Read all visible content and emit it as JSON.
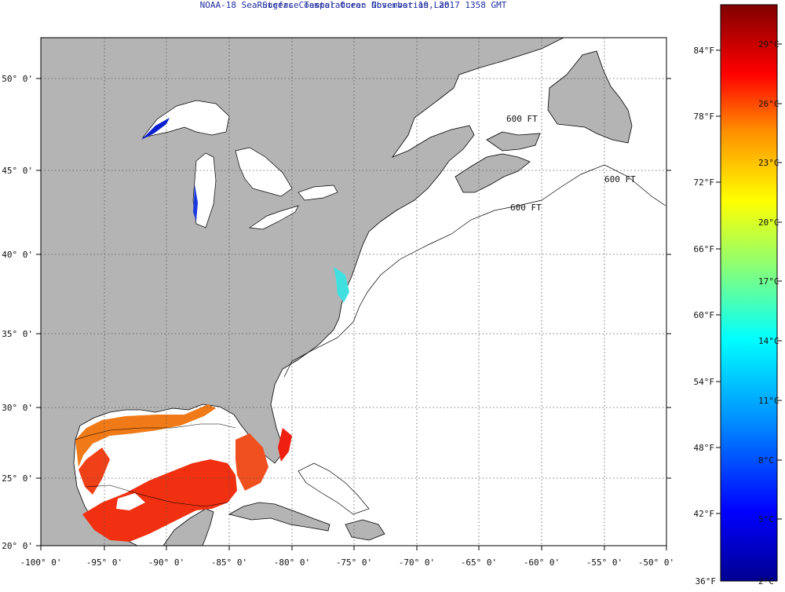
{
  "header": {
    "title": "NOAA-18 Sea Surface Temperature:  November 19, 2017 1358 GMT",
    "subtitle": "Rutgers Coastal Ocean Observation Lab"
  },
  "map": {
    "lon_ticks": [
      "-100° 0'",
      "-95° 0'",
      "-90° 0'",
      "-85° 0'",
      "-80° 0'",
      "-75° 0'",
      "-70° 0'",
      "-65° 0'",
      "-60° 0'",
      "-55° 0'",
      "-50° 0'"
    ],
    "lat_ticks": [
      "50° 0'",
      "45° 0'",
      "40° 0'",
      "35° 0'",
      "30° 0'",
      "25° 0'",
      "20° 0'"
    ],
    "isobath_label": "600 FT",
    "colors": {
      "land": "#b4b4b4",
      "ocean_no_data": "#ffffff",
      "grid": "#555555"
    }
  },
  "colorbar": {
    "fahrenheit": [
      "84°F",
      "78°F",
      "72°F",
      "66°F",
      "60°F",
      "54°F",
      "48°F",
      "42°F",
      "36°F"
    ],
    "celsius": [
      "29°C",
      "26°C",
      "23°C",
      "20°C",
      "17°C",
      "14°C",
      "11°C",
      "8°C",
      "5°C",
      "2°C"
    ],
    "colors": [
      "#000090",
      "#0000ff",
      "#0090ff",
      "#00ffff",
      "#90ff70",
      "#ffff00",
      "#ff9000",
      "#ff0000",
      "#800000"
    ]
  }
}
